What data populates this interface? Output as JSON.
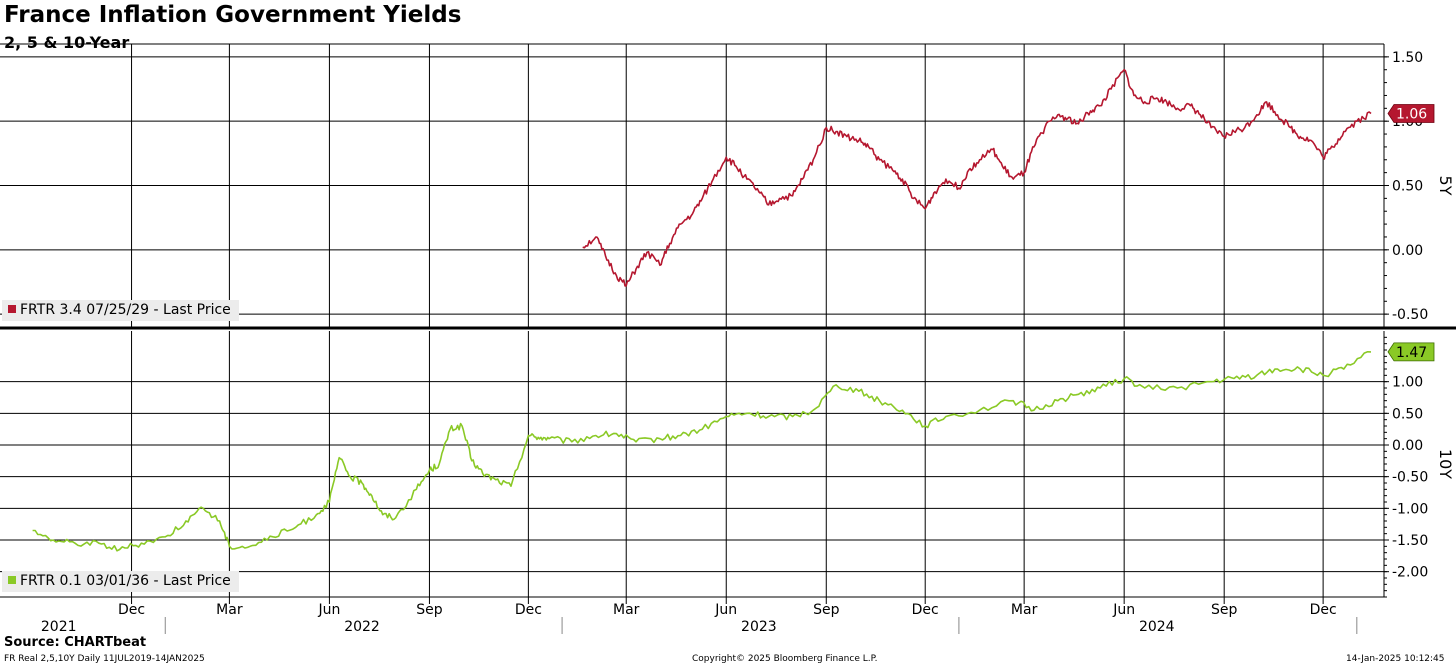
{
  "title": "France Inflation Government Yields",
  "subtitle": "2, 5 & 10-Year",
  "source": "Source: CHARTbeat",
  "footer_left": "FR Real 2,5,10Y  Daily  11JUL2019-14JAN2025",
  "footer_center": "Copyright© 2025 Bloomberg Finance L.P.",
  "footer_right": "14-Jan-2025 10:12:45",
  "colors": {
    "series_5y": "#b5172f",
    "series_10y": "#8ac926",
    "grid": "#000000"
  },
  "chart_data": [
    {
      "type": "line",
      "panel": "top",
      "axis_label": "5Y",
      "ylim": [
        -0.6,
        1.6
      ],
      "yticks": [
        1.5,
        1.0,
        0.5,
        0.0,
        -0.5
      ],
      "ytick_labels": [
        "1.50",
        "1.00",
        "0.50",
        "0.00",
        "-0.50"
      ],
      "last_value_label": "1.06",
      "legend": "FRTR 3.4 07/25/29 - Last Price",
      "grid": true,
      "series": [
        {
          "name": "FRTR 3.4 07/25/29 - Last Price",
          "x": [
            "2023-01-20",
            "2023-02-01",
            "2023-02-10",
            "2023-02-20",
            "2023-03-01",
            "2023-03-10",
            "2023-03-20",
            "2023-04-01",
            "2023-04-10",
            "2023-04-20",
            "2023-05-01",
            "2023-05-10",
            "2023-05-20",
            "2023-06-01",
            "2023-06-10",
            "2023-06-20",
            "2023-07-01",
            "2023-07-10",
            "2023-07-20",
            "2023-08-01",
            "2023-08-10",
            "2023-08-20",
            "2023-09-01",
            "2023-09-10",
            "2023-09-20",
            "2023-10-01",
            "2023-10-10",
            "2023-10-20",
            "2023-11-01",
            "2023-11-10",
            "2023-11-20",
            "2023-12-01",
            "2023-12-10",
            "2023-12-20",
            "2024-01-01",
            "2024-01-10",
            "2024-01-20",
            "2024-02-01",
            "2024-02-10",
            "2024-02-20",
            "2024-03-01",
            "2024-03-10",
            "2024-03-20",
            "2024-04-01",
            "2024-04-10",
            "2024-04-20",
            "2024-05-01",
            "2024-05-10",
            "2024-05-20",
            "2024-06-01",
            "2024-06-10",
            "2024-06-20",
            "2024-07-01",
            "2024-07-10",
            "2024-07-20",
            "2024-08-01",
            "2024-08-10",
            "2024-08-20",
            "2024-09-01",
            "2024-09-10",
            "2024-09-20",
            "2024-10-01",
            "2024-10-10",
            "2024-10-20",
            "2024-11-01",
            "2024-11-10",
            "2024-11-20",
            "2024-12-01",
            "2024-12-10",
            "2024-12-20",
            "2025-01-01",
            "2025-01-14"
          ],
          "values": [
            0.02,
            0.1,
            -0.05,
            -0.2,
            -0.28,
            -0.15,
            -0.02,
            -0.12,
            0.05,
            0.2,
            0.28,
            0.4,
            0.55,
            0.72,
            0.65,
            0.55,
            0.45,
            0.35,
            0.4,
            0.42,
            0.55,
            0.7,
            0.95,
            0.92,
            0.88,
            0.85,
            0.8,
            0.7,
            0.62,
            0.55,
            0.4,
            0.32,
            0.45,
            0.55,
            0.48,
            0.62,
            0.7,
            0.78,
            0.65,
            0.55,
            0.6,
            0.8,
            0.95,
            1.05,
            1.02,
            0.98,
            1.08,
            1.12,
            1.25,
            1.4,
            1.2,
            1.15,
            1.18,
            1.15,
            1.1,
            1.12,
            1.05,
            0.95,
            0.88,
            0.92,
            0.95,
            1.05,
            1.15,
            1.05,
            0.95,
            0.88,
            0.85,
            0.72,
            0.8,
            0.92,
            1.0,
            1.06
          ]
        }
      ]
    },
    {
      "type": "line",
      "panel": "bottom",
      "axis_label": "10Y",
      "ylim": [
        -2.4,
        1.8
      ],
      "yticks": [
        1.0,
        0.5,
        0.0,
        -0.5,
        -1.0,
        -1.5,
        -2.0
      ],
      "ytick_labels": [
        "1.00",
        "0.50",
        "0.00",
        "-0.50",
        "-1.00",
        "-1.50",
        "-2.00"
      ],
      "last_value_label": "1.47",
      "legend": "FRTR 0.1 03/01/36 - Last Price",
      "grid": true,
      "series": [
        {
          "name": "FRTR 0.1 03/01/36 - Last Price",
          "x": [
            "2021-09-01",
            "2021-09-20",
            "2021-10-10",
            "2021-11-01",
            "2021-11-20",
            "2021-12-10",
            "2022-01-01",
            "2022-01-20",
            "2022-02-05",
            "2022-02-20",
            "2022-03-01",
            "2022-03-20",
            "2022-04-10",
            "2022-05-01",
            "2022-05-20",
            "2022-06-01",
            "2022-06-10",
            "2022-06-20",
            "2022-07-01",
            "2022-07-10",
            "2022-07-20",
            "2022-08-01",
            "2022-08-20",
            "2022-09-01",
            "2022-09-10",
            "2022-09-20",
            "2022-10-01",
            "2022-10-10",
            "2022-10-20",
            "2022-11-01",
            "2022-11-15",
            "2022-12-01",
            "2022-12-10",
            "2022-12-20",
            "2023-01-10",
            "2023-02-01",
            "2023-02-20",
            "2023-03-10",
            "2023-04-01",
            "2023-04-20",
            "2023-05-10",
            "2023-06-01",
            "2023-06-20",
            "2023-07-10",
            "2023-08-01",
            "2023-08-20",
            "2023-09-10",
            "2023-10-01",
            "2023-10-20",
            "2023-11-10",
            "2023-12-01",
            "2023-12-20",
            "2024-01-20",
            "2024-02-20",
            "2024-03-10",
            "2024-04-01",
            "2024-04-20",
            "2024-05-10",
            "2024-06-01",
            "2024-06-20",
            "2024-07-20",
            "2024-08-20",
            "2024-09-10",
            "2024-10-01",
            "2024-10-20",
            "2024-11-10",
            "2024-12-01",
            "2024-12-20",
            "2025-01-14"
          ],
          "values": [
            -1.35,
            -1.5,
            -1.55,
            -1.55,
            -1.65,
            -1.55,
            -1.45,
            -1.2,
            -1.0,
            -1.2,
            -1.6,
            -1.6,
            -1.45,
            -1.3,
            -1.1,
            -0.9,
            -0.2,
            -0.5,
            -0.6,
            -0.8,
            -1.1,
            -1.15,
            -0.7,
            -0.4,
            -0.3,
            0.25,
            0.3,
            -0.25,
            -0.45,
            -0.55,
            -0.65,
            0.15,
            0.12,
            0.1,
            0.05,
            0.15,
            0.18,
            0.05,
            0.1,
            0.15,
            0.25,
            0.45,
            0.5,
            0.45,
            0.45,
            0.55,
            0.95,
            0.85,
            0.7,
            0.55,
            0.3,
            0.45,
            0.55,
            0.7,
            0.55,
            0.7,
            0.8,
            0.9,
            1.05,
            0.9,
            0.9,
            1.0,
            1.05,
            1.1,
            1.2,
            1.2,
            1.1,
            1.2,
            1.47
          ]
        }
      ]
    }
  ],
  "x_axis": {
    "month_labels": [
      "Dec",
      "Mar",
      "Jun",
      "Sep",
      "Dec",
      "Mar",
      "Jun",
      "Sep",
      "Dec",
      "Mar",
      "Jun",
      "Sep",
      "Dec"
    ],
    "year_labels": [
      "2021",
      "2022",
      "2023",
      "2024"
    ]
  }
}
